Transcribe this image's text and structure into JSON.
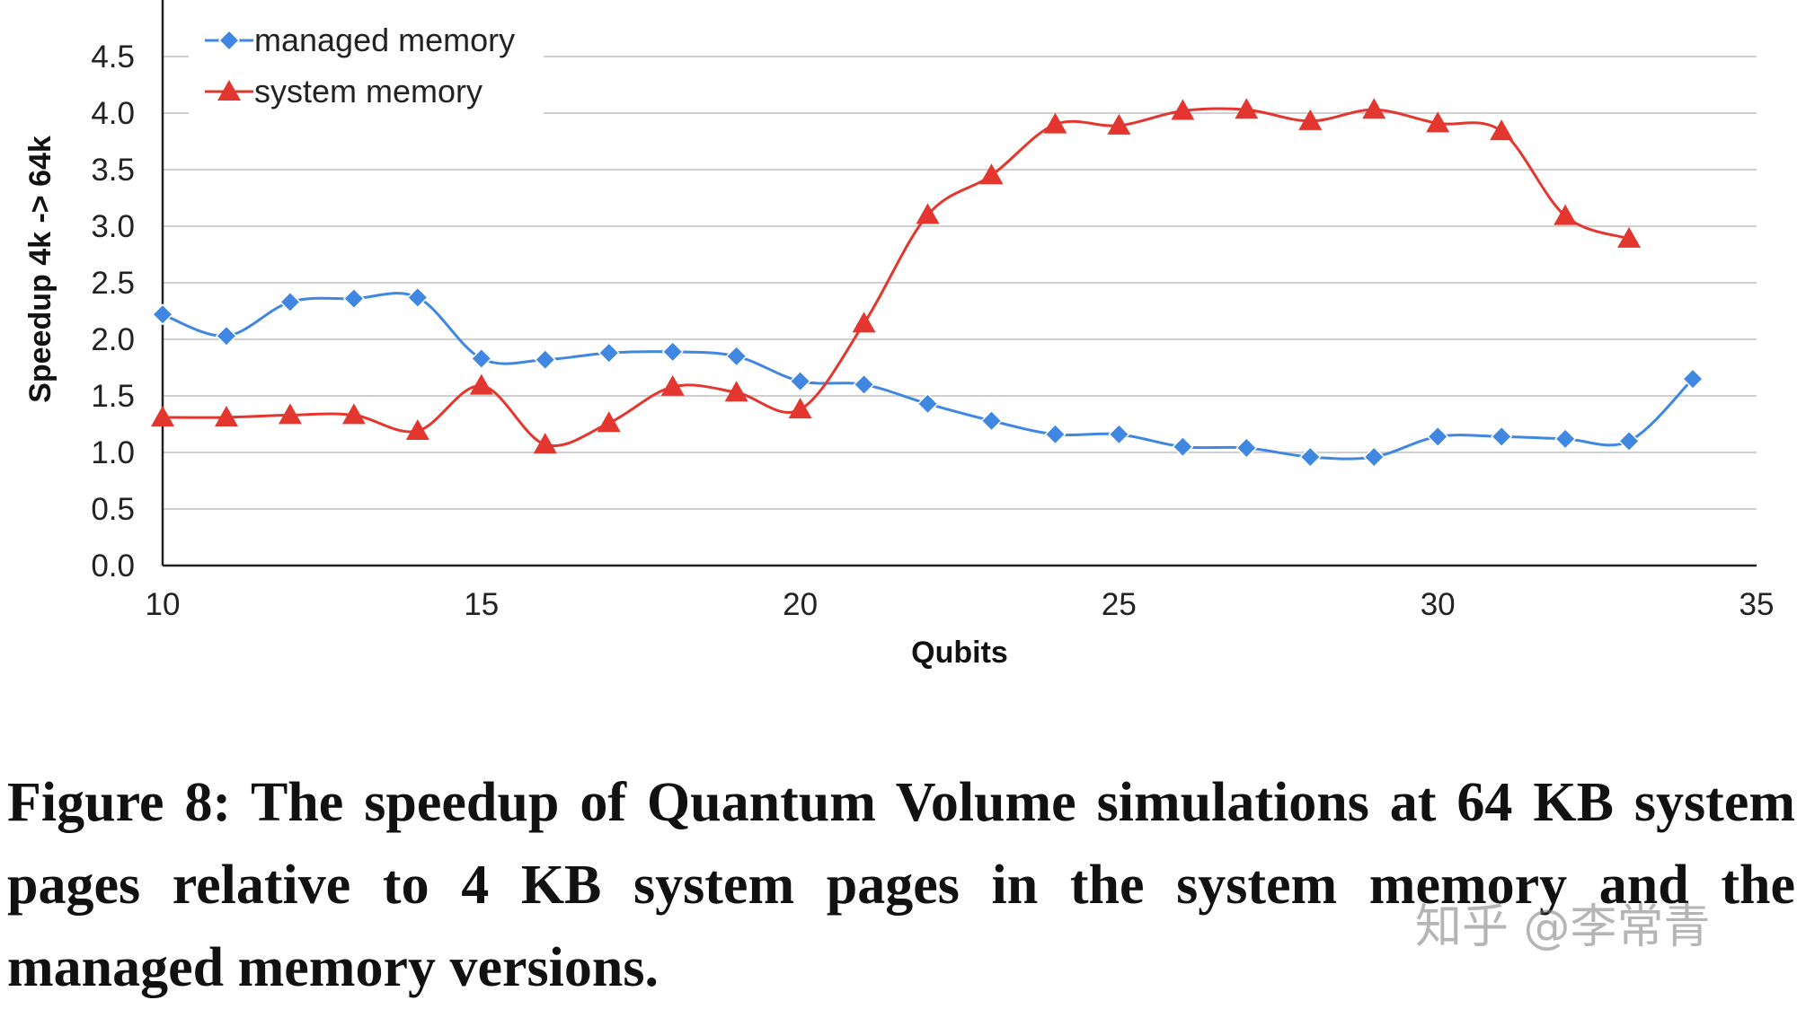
{
  "chart_data": {
    "type": "line",
    "xlabel": "Qubits",
    "ylabel": "Speedup 4k -> 64k",
    "xlim": [
      10,
      35
    ],
    "ylim": [
      0,
      5
    ],
    "x_ticks": [
      "10",
      "15",
      "20",
      "25",
      "30",
      "35"
    ],
    "y_ticks": [
      "0.0",
      "0.5",
      "1.0",
      "1.5",
      "2.0",
      "2.5",
      "3.0",
      "3.5",
      "4.0",
      "4.5"
    ],
    "grid": true,
    "legend_position": "top-left",
    "series": [
      {
        "name": "managed memory",
        "color": "#3f87e0",
        "marker": "diamond",
        "x": [
          10,
          11,
          12,
          13,
          14,
          15,
          16,
          17,
          18,
          19,
          20,
          21,
          22,
          23,
          24,
          25,
          26,
          27,
          28,
          29,
          30,
          31,
          32,
          33,
          34
        ],
        "values": [
          2.22,
          2.03,
          2.33,
          2.36,
          2.37,
          1.83,
          1.82,
          1.88,
          1.89,
          1.85,
          1.63,
          1.6,
          1.43,
          1.28,
          1.16,
          1.16,
          1.05,
          1.04,
          0.96,
          0.96,
          1.14,
          1.14,
          1.12,
          1.1,
          1.65
        ]
      },
      {
        "name": "system memory",
        "color": "#e2362e",
        "marker": "triangle",
        "x": [
          10,
          11,
          12,
          13,
          14,
          15,
          16,
          17,
          18,
          19,
          20,
          21,
          22,
          23,
          24,
          25,
          26,
          27,
          28,
          29,
          30,
          31,
          32,
          33
        ],
        "values": [
          1.31,
          1.31,
          1.33,
          1.33,
          1.19,
          1.59,
          1.07,
          1.26,
          1.58,
          1.53,
          1.38,
          2.14,
          3.1,
          3.45,
          3.9,
          3.89,
          4.02,
          4.03,
          3.93,
          4.03,
          3.91,
          3.84,
          3.09,
          2.89
        ]
      }
    ]
  },
  "caption": "Figure 8: The speedup of Quantum Volume simulations at 64 KB system pages relative to 4 KB system pages in the system memory and the managed memory versions.",
  "watermark": "知乎 @李常青"
}
